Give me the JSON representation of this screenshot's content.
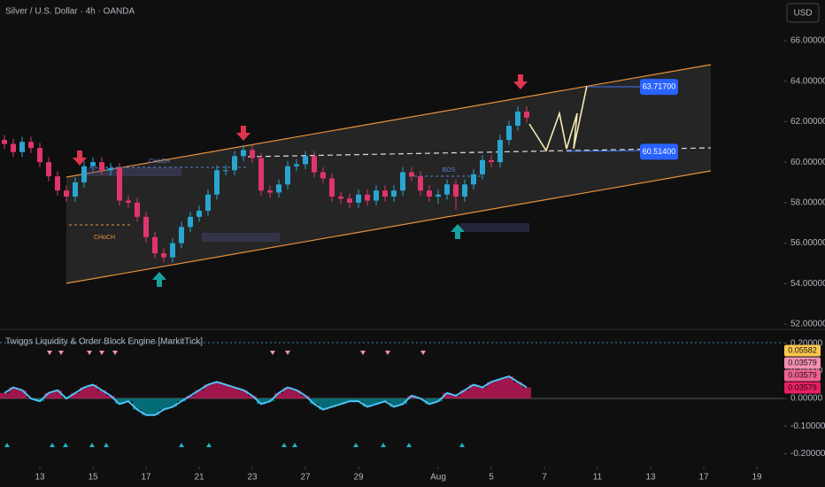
{
  "chart_data": [
    {
      "type": "candlestick",
      "title": "Silver / U.S. Dollar · 4h · OANDA",
      "currency": "USD",
      "up_color": "#2aa5d1",
      "down_color": "#e0356c",
      "ylim": [
        51.74,
        68.01
      ],
      "yticks": [
        {
          "value": 52,
          "label": "52.00000"
        },
        {
          "value": 54,
          "label": "54.00000"
        },
        {
          "value": 56,
          "label": "56.00000"
        },
        {
          "value": 58,
          "label": "58.00000"
        },
        {
          "value": 60,
          "label": "60.00000"
        },
        {
          "value": 62,
          "label": "62.00000"
        },
        {
          "value": 64,
          "label": "64.00000"
        },
        {
          "value": 66,
          "label": "66.00000"
        }
      ],
      "xlim": [
        -0.5,
        88
      ],
      "xticks": [
        {
          "value": 4,
          "label": "13"
        },
        {
          "value": 10,
          "label": "15"
        },
        {
          "value": 16,
          "label": "17"
        },
        {
          "value": 22,
          "label": "21"
        },
        {
          "value": 28,
          "label": "23"
        },
        {
          "value": 34,
          "label": "27"
        },
        {
          "value": 40,
          "label": "29"
        },
        {
          "value": 49,
          "label": "Aug"
        },
        {
          "value": 55,
          "label": "5"
        },
        {
          "value": 61,
          "label": "7"
        },
        {
          "value": 67,
          "label": "11"
        },
        {
          "value": 73,
          "label": "13"
        },
        {
          "value": 79,
          "label": "17"
        },
        {
          "value": 85,
          "label": "19"
        }
      ],
      "annotations": [
        "CHoCH",
        "CHoCH",
        "BOS"
      ],
      "price_labels": [
        {
          "value": 63.717,
          "label": "63.71700"
        },
        {
          "value": 60.514,
          "label": "60.51400"
        }
      ],
      "candles": [
        [
          61.1,
          61.35,
          60.65,
          60.9
        ],
        [
          60.9,
          61.15,
          60.25,
          60.5
        ],
        [
          60.5,
          61.25,
          60.25,
          61.0
        ],
        [
          61.0,
          61.25,
          60.45,
          60.7
        ],
        [
          60.7,
          60.95,
          59.75,
          60.0
        ],
        [
          60.0,
          60.25,
          59.05,
          59.3
        ],
        [
          59.3,
          59.55,
          58.35,
          58.6
        ],
        [
          58.6,
          58.85,
          58.05,
          58.3
        ],
        [
          58.3,
          59.25,
          58.05,
          59.0
        ],
        [
          59.0,
          60.05,
          58.75,
          59.8
        ],
        [
          59.8,
          60.25,
          59.55,
          60.0
        ],
        [
          60.0,
          60.25,
          59.35,
          59.6
        ],
        [
          59.6,
          59.95,
          59.35,
          59.7
        ],
        [
          59.7,
          59.95,
          57.85,
          58.1
        ],
        [
          58.1,
          58.35,
          57.75,
          58.0
        ],
        [
          58.0,
          58.25,
          57.05,
          57.3
        ],
        [
          57.3,
          57.55,
          56.05,
          56.3
        ],
        [
          56.3,
          56.55,
          55.25,
          55.5
        ],
        [
          55.5,
          55.75,
          55.05,
          55.3
        ],
        [
          55.3,
          56.25,
          55.05,
          56.0
        ],
        [
          56.0,
          57.05,
          55.75,
          56.8
        ],
        [
          56.8,
          57.55,
          56.55,
          57.3
        ],
        [
          57.3,
          57.85,
          57.05,
          57.6
        ],
        [
          57.6,
          58.65,
          57.35,
          58.4
        ],
        [
          58.4,
          59.85,
          58.15,
          59.6
        ],
        [
          59.6,
          59.85,
          59.35,
          59.6
        ],
        [
          59.6,
          60.55,
          59.35,
          60.3
        ],
        [
          60.3,
          60.85,
          60.05,
          60.6
        ],
        [
          60.6,
          60.85,
          59.95,
          60.2
        ],
        [
          60.2,
          60.45,
          58.35,
          58.6
        ],
        [
          58.6,
          58.85,
          58.25,
          58.5
        ],
        [
          58.5,
          59.15,
          58.25,
          58.9
        ],
        [
          58.9,
          60.05,
          58.65,
          59.8
        ],
        [
          59.8,
          60.15,
          59.55,
          59.9
        ],
        [
          59.9,
          60.55,
          59.65,
          60.3
        ],
        [
          60.3,
          60.55,
          59.25,
          59.5
        ],
        [
          59.5,
          59.75,
          58.95,
          59.2
        ],
        [
          59.2,
          59.45,
          58.05,
          58.3
        ],
        [
          58.3,
          58.55,
          57.95,
          58.2
        ],
        [
          58.2,
          58.45,
          57.75,
          58.0
        ],
        [
          58.0,
          58.65,
          57.75,
          58.4
        ],
        [
          58.4,
          58.65,
          57.85,
          58.1
        ],
        [
          58.1,
          58.85,
          57.85,
          58.6
        ],
        [
          58.6,
          58.85,
          58.05,
          58.3
        ],
        [
          58.3,
          58.85,
          58.05,
          58.6
        ],
        [
          58.6,
          59.75,
          58.35,
          59.5
        ],
        [
          59.5,
          59.75,
          59.05,
          59.3
        ],
        [
          59.3,
          59.55,
          58.35,
          58.6
        ],
        [
          58.6,
          58.85,
          58.05,
          58.3
        ],
        [
          58.3,
          58.65,
          57.95,
          58.4
        ],
        [
          58.4,
          59.15,
          58.15,
          58.9
        ],
        [
          58.9,
          59.15,
          57.65,
          58.3
        ],
        [
          58.3,
          59.15,
          58.05,
          58.9
        ],
        [
          58.9,
          59.65,
          58.65,
          59.4
        ],
        [
          59.4,
          60.35,
          59.15,
          60.1
        ],
        [
          60.1,
          60.35,
          59.75,
          60.0
        ],
        [
          60.0,
          61.35,
          59.75,
          61.1
        ],
        [
          61.1,
          62.05,
          60.85,
          61.8
        ],
        [
          61.8,
          62.75,
          61.55,
          62.5
        ],
        [
          62.5,
          62.75,
          61.95,
          62.2
        ]
      ]
    },
    {
      "type": "histogram-oscillator",
      "title": "Twiggs Liquidity & Order Block Engine [MarkitTick]",
      "up_color": "#c2185b",
      "down_color": "#00838f",
      "line_color": "#4fc3f7",
      "ylim": [
        -0.24,
        0.25
      ],
      "yticks": [
        {
          "value": 0.2,
          "label": "0.20000"
        },
        {
          "value": 0.1,
          "label": "0.10000"
        },
        {
          "value": 0,
          "label": "0.00000"
        },
        {
          "value": -0.1,
          "label": "-0.10000"
        },
        {
          "value": -0.2,
          "label": "-0.20000"
        }
      ],
      "last_values": [
        {
          "value": 0.05582,
          "label": "0.05582"
        },
        {
          "value": 0.03579,
          "label": "0.03579"
        },
        {
          "value": 0.03579,
          "label": "0.03579"
        },
        {
          "value": 0.03579,
          "label": "0.03579"
        }
      ],
      "values": [
        0.02,
        0.04,
        0.03,
        0.0,
        -0.01,
        0.02,
        0.03,
        0.0,
        0.02,
        0.04,
        0.05,
        0.03,
        0.01,
        -0.02,
        -0.01,
        -0.04,
        -0.06,
        -0.06,
        -0.04,
        -0.03,
        -0.01,
        0.01,
        0.03,
        0.05,
        0.06,
        0.05,
        0.04,
        0.03,
        0.01,
        -0.02,
        -0.01,
        0.02,
        0.04,
        0.03,
        0.01,
        -0.02,
        -0.04,
        -0.03,
        -0.02,
        -0.01,
        -0.01,
        -0.03,
        -0.02,
        -0.01,
        -0.03,
        -0.02,
        0.01,
        0.0,
        -0.02,
        -0.01,
        0.02,
        0.01,
        0.03,
        0.05,
        0.04,
        0.06,
        0.07,
        0.08,
        0.06,
        0.04
      ]
    }
  ]
}
